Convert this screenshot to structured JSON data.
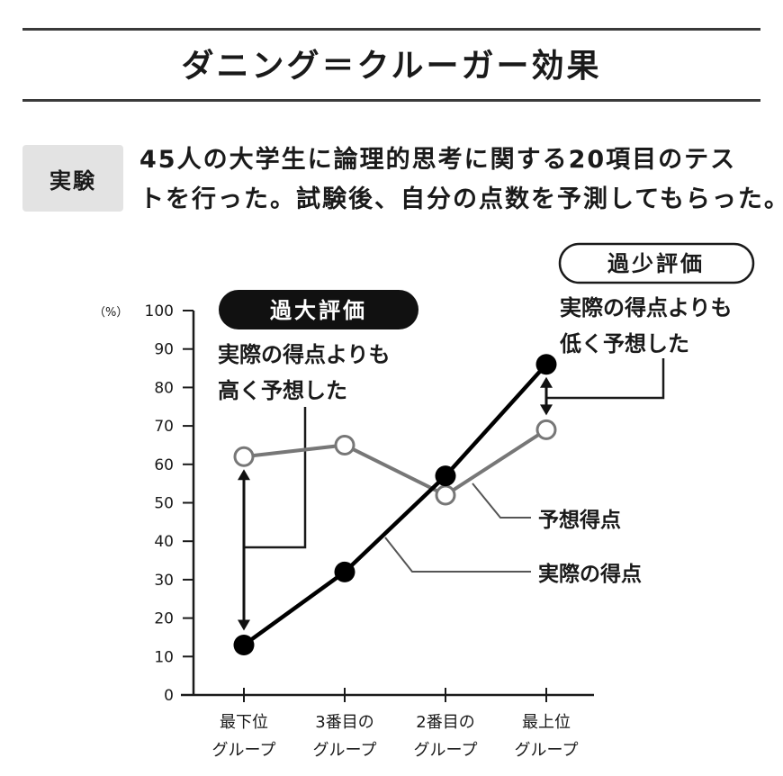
{
  "header": {
    "title": "ダニング＝クルーガー効果"
  },
  "experiment": {
    "label": "実験",
    "lines": [
      "45人の大学生に論理的思考に関する20項目のテス",
      "トを行った。試験後、自分の点数を予測してもらった。"
    ]
  },
  "chart_data": {
    "type": "line",
    "categories": [
      [
        "最下位",
        "グループ"
      ],
      [
        "3番目の",
        "グループ"
      ],
      [
        "2番目の",
        "グループ"
      ],
      [
        "最上位",
        "グループ"
      ]
    ],
    "series": [
      {
        "name": "予想得点",
        "values": [
          62,
          65,
          52,
          69
        ],
        "color": "#777777",
        "marker": "open-circle"
      },
      {
        "name": "実際の得点",
        "values": [
          13,
          32,
          57,
          86
        ],
        "color": "#000000",
        "marker": "filled-circle"
      }
    ],
    "y_unit": "（%）",
    "ylim": [
      0,
      100
    ],
    "yticks": [
      0,
      10,
      20,
      30,
      40,
      50,
      60,
      70,
      80,
      90,
      100
    ],
    "grid": false,
    "annotations": {
      "overestimate": {
        "badge": "過大評価",
        "lines": [
          "実際の得点よりも",
          "高く予想した"
        ]
      },
      "underestimate": {
        "badge": "過少評価",
        "lines": [
          "実際の得点よりも",
          "低く予想した"
        ]
      }
    }
  }
}
